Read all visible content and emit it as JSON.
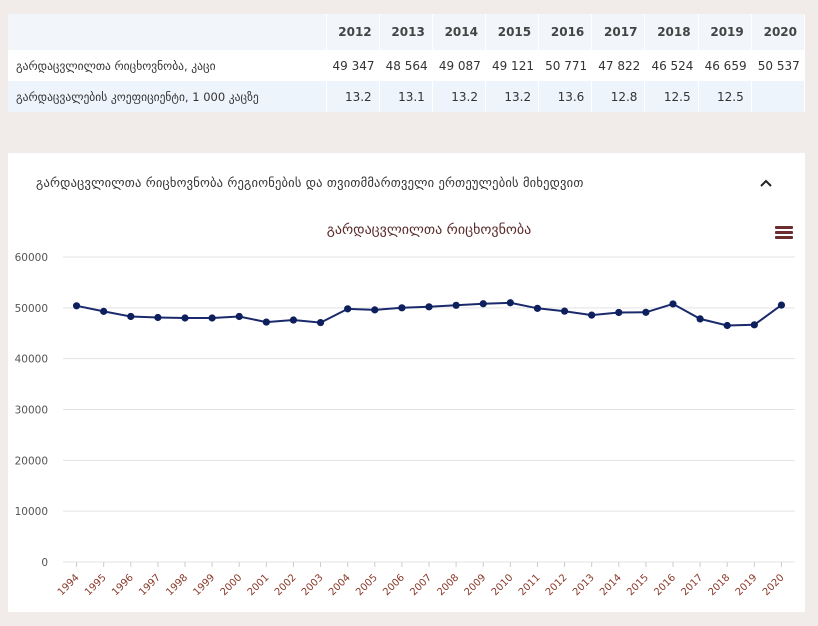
{
  "table": {
    "years": [
      "2012",
      "2013",
      "2014",
      "2015",
      "2016",
      "2017",
      "2018",
      "2019",
      "2020"
    ],
    "rows": [
      {
        "label": "გარდაცვლილთა რიცხოვნობა, კაცი",
        "values": [
          "49 347",
          "48 564",
          "49 087",
          "49 121",
          "50 771",
          "47 822",
          "46 524",
          "46 659",
          "50 537"
        ]
      },
      {
        "label": "გარდაცვალების კოეფიციენტი, 1 000 კაცზე",
        "values": [
          "13.2",
          "13.1",
          "13.2",
          "13.2",
          "13.6",
          "12.8",
          "12.5",
          "12.5",
          ""
        ]
      }
    ]
  },
  "panel": {
    "title": "გარდაცვლილთა რიცხოვნობა რეგიონების და თვითმმართველი ერთეულების მიხედვით",
    "collapse_icon": "chevron-up-icon",
    "menu_icon": "hamburger-menu-icon"
  },
  "chart_data": {
    "type": "line",
    "title": "გარდაცვლილთა რიცხოვნობა",
    "xlabel": "",
    "ylabel": "",
    "ylim": [
      0,
      60000
    ],
    "yticks": [
      0,
      10000,
      20000,
      30000,
      40000,
      50000,
      60000
    ],
    "x": [
      "1994",
      "1995",
      "1996",
      "1997",
      "1998",
      "1999",
      "2000",
      "2001",
      "2002",
      "2003",
      "2004",
      "2005",
      "2006",
      "2007",
      "2008",
      "2009",
      "2010",
      "2011",
      "2012",
      "2013",
      "2014",
      "2015",
      "2016",
      "2017",
      "2018",
      "2019",
      "2020"
    ],
    "series": [
      {
        "name": "გარდაცვლილთა რიცხოვნობა",
        "values": [
          50400,
          49300,
          48300,
          48100,
          48000,
          48000,
          48300,
          47200,
          47600,
          47100,
          49800,
          49600,
          50000,
          50200,
          50500,
          50800,
          51000,
          49900,
          49347,
          48564,
          49087,
          49121,
          50771,
          47822,
          46524,
          46659,
          50537
        ]
      }
    ],
    "colors": {
      "line": "#1a2a6c",
      "marker": "#0d1f5c",
      "grid": "#e3e3e3",
      "title": "#5a2a2a",
      "axis_label": "#8a3a2a",
      "tick_label": "#555555"
    },
    "grid": true
  }
}
